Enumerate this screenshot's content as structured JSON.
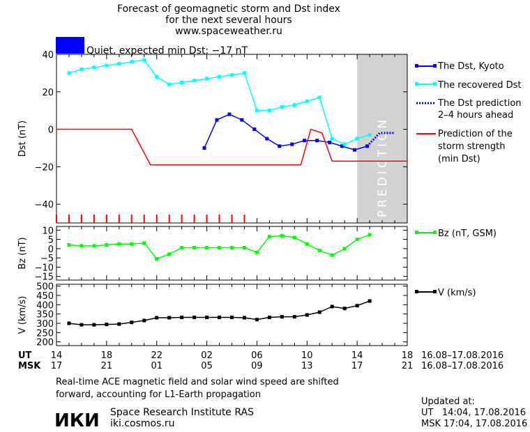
{
  "header": {
    "title_line1": "Forecast of geomagnetic storm and Dst index",
    "title_line2": "for the next several hours",
    "site": "www.spaceweather.ru"
  },
  "status": {
    "color": "#0000ff",
    "text": "Quiet, expected min Dst: −17 nT"
  },
  "legend": {
    "dst": "The Dst, Kyoto",
    "recovered": "The recovered Dst",
    "prediction_line1": "The Dst prediction",
    "prediction_line2": "2–4 hours ahead",
    "strength_line1": "Prediction of the",
    "strength_line2": "storm strength",
    "strength_line3": "(min Dst)",
    "bz": "Bz (nT, GSM)",
    "v": "V (km/s)"
  },
  "panels": {
    "prediction_label": "PREDICTION",
    "time_axis": {
      "ut_label": "UT",
      "msk_label": "MSK",
      "ut_ticks": [
        "14",
        "18",
        "22",
        "02",
        "06",
        "10",
        "14",
        "18"
      ],
      "msk_ticks": [
        "17",
        "21",
        "01",
        "05",
        "09",
        "13",
        "17",
        "21"
      ],
      "date_range": "16.08–17.08.2016"
    }
  },
  "footer": {
    "note_line1": "Real-time ACE magnetic field and solar wind speed are shifted",
    "note_line2": "forward, accounting for L1-Earth propagation",
    "logo": "ИКИ",
    "institute": "Space Research Institute RAS",
    "institute_url": "iki.cosmos.ru",
    "updated_label": "Updated at:",
    "updated_ut": "UT   14:04, 17.08.2016",
    "updated_msk": "MSK 17:04, 17.08.2016"
  },
  "colors": {
    "dst": "#0000ff",
    "recovered": "#00ffff",
    "prediction": "#0000ff",
    "strength": "#ff0000",
    "bz": "#00ff00",
    "v": "#000000",
    "prediction_zone": "#d3d3d3"
  },
  "chart_data": [
    {
      "type": "line",
      "panel": "dst",
      "ylabel": "Dst (nT)",
      "ylim": [
        -50,
        40
      ],
      "yticks": [
        40,
        20,
        0,
        -20,
        -40
      ],
      "xlim": [
        14,
        42
      ],
      "prediction_zone": [
        38.0,
        42
      ],
      "series": [
        {
          "name": "The Dst, Kyoto",
          "color": "#0000ff",
          "marker": "square",
          "x": [
            25.8,
            26.8,
            27.8,
            28.8,
            29.8,
            30.8,
            31.8,
            32.8,
            33.8,
            34.8,
            35.8,
            36.8,
            37.8,
            38.8
          ],
          "y": [
            -10,
            5,
            8,
            5,
            0,
            -5,
            -9,
            -8,
            -6,
            -6,
            -7,
            -9,
            -11,
            -9
          ]
        },
        {
          "name": "The recovered Dst",
          "color": "#00ffff",
          "marker": "square",
          "x": [
            15,
            16,
            17,
            18,
            19,
            20,
            21,
            22,
            23,
            24,
            25,
            26,
            27,
            28,
            29,
            30,
            31,
            32,
            33,
            34,
            35,
            36,
            37,
            38,
            39
          ],
          "y": [
            30,
            32,
            33,
            34,
            35,
            36,
            37,
            28,
            24,
            25,
            26,
            27,
            28,
            29,
            30,
            10,
            10,
            12,
            13,
            15,
            17,
            -5,
            -8,
            -5,
            -3
          ]
        },
        {
          "name": "The Dst prediction 2–4 hours ahead",
          "color": "#0000ff",
          "dashed": true,
          "x": [
            38.8,
            39.8,
            41
          ],
          "y": [
            -9,
            -2,
            -2
          ]
        },
        {
          "name": "Prediction of the storm strength (min Dst)",
          "color": "#ff0000",
          "step": true,
          "x": [
            14,
            20,
            21.5,
            33.5,
            34.3,
            35.2,
            36,
            42
          ],
          "y": [
            0,
            0,
            -19,
            -19,
            0,
            -2,
            -17,
            -17
          ]
        }
      ],
      "quiet_markers": [
        14,
        15,
        16,
        17,
        18,
        19,
        20,
        21,
        22,
        23,
        24,
        25,
        26,
        27,
        28,
        29
      ]
    },
    {
      "type": "line",
      "panel": "bz",
      "ylabel": "Bz (nT)",
      "ylim": [
        -17,
        12
      ],
      "yticks": [
        10,
        5,
        0,
        -5,
        -10,
        -15
      ],
      "xlim": [
        14,
        42
      ],
      "series": [
        {
          "name": "Bz (nT, GSM)",
          "color": "#00ff00",
          "marker": "square",
          "x": [
            15,
            16,
            17,
            18,
            19,
            20,
            21,
            22,
            23,
            24,
            25,
            26,
            27,
            28,
            29,
            30,
            31,
            32,
            33,
            34,
            35,
            36,
            37,
            38,
            39
          ],
          "y": [
            2,
            1.5,
            1.5,
            2,
            2.5,
            2.5,
            3,
            -5.5,
            -3,
            0.5,
            0.5,
            0.5,
            0.5,
            0.5,
            0.5,
            -2,
            6.5,
            7,
            6,
            2.5,
            -1,
            -3.5,
            0,
            5,
            7.5
          ]
        }
      ]
    },
    {
      "type": "line",
      "panel": "v",
      "ylabel": "V (km/s)",
      "ylim": [
        180,
        510
      ],
      "yticks": [
        500,
        450,
        400,
        350,
        300,
        250,
        200
      ],
      "xlim": [
        14,
        42
      ],
      "series": [
        {
          "name": "V (km/s)",
          "color": "#000000",
          "marker": "square",
          "x": [
            15,
            16,
            17,
            18,
            19,
            20,
            21,
            22,
            23,
            24,
            25,
            26,
            27,
            28,
            29,
            30,
            31,
            32,
            33,
            34,
            35,
            36,
            37,
            38,
            39
          ],
          "y": [
            300,
            292,
            292,
            294,
            296,
            305,
            315,
            330,
            330,
            332,
            332,
            332,
            332,
            332,
            330,
            320,
            332,
            335,
            335,
            345,
            360,
            390,
            380,
            395,
            420
          ]
        }
      ]
    }
  ]
}
